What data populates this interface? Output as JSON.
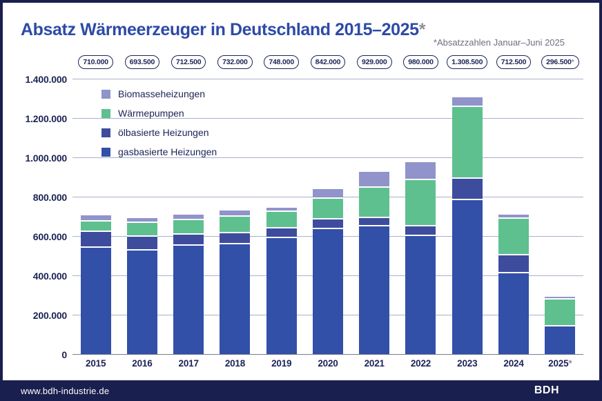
{
  "header": {
    "title_main": "Absatz Wärmeerzeuger in Deutschland 2015–2025",
    "title_mark": "*",
    "note": "*Absatzzahlen Januar–Juni 2025"
  },
  "footer": {
    "url": "www.bdh-industrie.de",
    "logo": "BDH"
  },
  "colors": {
    "title_blue": "#2d4aa7",
    "navy_text": "#1b2355",
    "gray_text": "#6d6e7e",
    "footer_bg": "#191f4e",
    "gridline": "#a9b1cb",
    "gas": "#3250a8",
    "oil": "#3e4c9e",
    "heat_pump": "#5ec08f",
    "biomass": "#9193cb"
  },
  "legend": [
    {
      "label": "Biomasseheizungen",
      "color": "#9193cb"
    },
    {
      "label": "Wärmepumpen",
      "color": "#5ec08f"
    },
    {
      "label": "ölbasierte Heizungen",
      "color": "#3e4c9e"
    },
    {
      "label": "gasbasierte Heizungen",
      "color": "#3250a8"
    }
  ],
  "chart_data": {
    "type": "bar",
    "subtype": "stacked",
    "title": "Absatz Wärmeerzeuger in Deutschland 2015–2025*",
    "note": "*Absatzzahlen Januar–Juni 2025",
    "categories": [
      "2015",
      "2016",
      "2017",
      "2018",
      "2019",
      "2020",
      "2021",
      "2022",
      "2023",
      "2024",
      "2025*"
    ],
    "totals": [
      710000,
      693500,
      712500,
      732000,
      748000,
      842000,
      929000,
      980000,
      1308500,
      712500,
      296500
    ],
    "total_labels": [
      "710.000",
      "693.500",
      "712.500",
      "732.000",
      "748.000",
      "842.000",
      "929.000",
      "980.000",
      "1.308.500",
      "712.500",
      "296.500*"
    ],
    "series": [
      {
        "name": "gasbasierte Heizungen",
        "color": "#3250a8",
        "values": [
          545500,
          531000,
          553500,
          562500,
          592000,
          638500,
          653500,
          604500,
          787000,
          414500,
          139000
        ]
      },
      {
        "name": "ölbasierte Heizungen",
        "color": "#3e4c9e",
        "values": [
          80000,
          69000,
          58000,
          55000,
          51000,
          48500,
          42000,
          49500,
          108000,
          90500,
          3500
        ]
      },
      {
        "name": "Wärmepumpen",
        "color": "#5ec08f",
        "values": [
          52500,
          70500,
          74500,
          86000,
          82000,
          105000,
          154000,
          235000,
          364000,
          186000,
          140000
        ]
      },
      {
        "name": "Biomasseheizungen",
        "color": "#9193cb",
        "values": [
          32000,
          23000,
          26500,
          28500,
          23000,
          50000,
          79500,
          91000,
          49500,
          21500,
          14000
        ]
      }
    ],
    "ylim": [
      0,
      1400000
    ],
    "y_tick_step": 200000,
    "y_tick_labels": [
      "1.400.000",
      "1.200.000",
      "1.000.000",
      "800.000",
      "600.000",
      "400.000",
      "200.000",
      "0"
    ],
    "grid": true,
    "legend_position": "top-left-inside",
    "stack_order_bottom_to_top": [
      "gasbasierte Heizungen",
      "ölbasierte Heizungen",
      "Wärmepumpen",
      "Biomasseheizungen"
    ]
  }
}
